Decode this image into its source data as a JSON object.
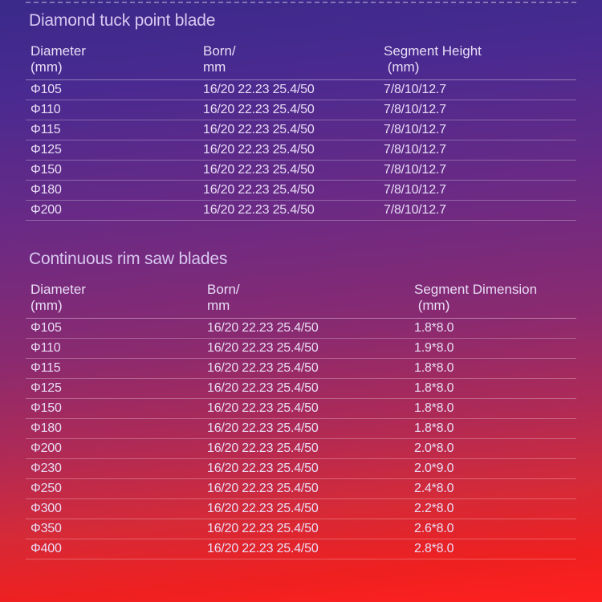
{
  "section1": {
    "title": "Diamond tuck point blade",
    "headers": {
      "c1a": "Diameter",
      "c1b": "(mm)",
      "c2a": "Born/",
      "c2b": "mm",
      "c3a": "Segment Height",
      "c3b": "(mm)"
    },
    "rows": [
      {
        "d": "Φ105",
        "b": "16/20 22.23 25.4/50",
        "s": "7/8/10/12.7"
      },
      {
        "d": "Φ110",
        "b": "16/20 22.23 25.4/50",
        "s": "7/8/10/12.7"
      },
      {
        "d": "Φ115",
        "b": "16/20 22.23 25.4/50",
        "s": "7/8/10/12.7"
      },
      {
        "d": "Φ125",
        "b": "16/20 22.23 25.4/50",
        "s": "7/8/10/12.7"
      },
      {
        "d": "Φ150",
        "b": "16/20 22.23 25.4/50",
        "s": "7/8/10/12.7"
      },
      {
        "d": "Φ180",
        "b": "16/20 22.23 25.4/50",
        "s": "7/8/10/12.7"
      },
      {
        "d": "Φ200",
        "b": "16/20 22.23 25.4/50",
        "s": "7/8/10/12.7"
      }
    ]
  },
  "section2": {
    "title": "Continuous rim saw blades",
    "headers": {
      "c1a": "Diameter",
      "c1b": "(mm)",
      "c2a": "Born/",
      "c2b": "mm",
      "c3a": "Segment Dimension",
      "c3b": "(mm)"
    },
    "rows": [
      {
        "d": "Φ105",
        "b": "16/20 22.23 25.4/50",
        "s": "1.8*8.0"
      },
      {
        "d": "Φ110",
        "b": "16/20 22.23 25.4/50",
        "s": "1.9*8.0"
      },
      {
        "d": "Φ115",
        "b": "16/20 22.23 25.4/50",
        "s": "1.8*8.0"
      },
      {
        "d": "Φ125",
        "b": "16/20 22.23 25.4/50",
        "s": "1.8*8.0"
      },
      {
        "d": "Φ150",
        "b": "16/20 22.23 25.4/50",
        "s": "1.8*8.0"
      },
      {
        "d": "Φ180",
        "b": "16/20 22.23 25.4/50",
        "s": "1.8*8.0"
      },
      {
        "d": "Φ200",
        "b": "16/20 22.23 25.4/50",
        "s": "2.0*8.0"
      },
      {
        "d": "Φ230",
        "b": "16/20 22.23 25.4/50",
        "s": "2.0*9.0"
      },
      {
        "d": "Φ250",
        "b": "16/20 22.23 25.4/50",
        "s": "2.4*8.0"
      },
      {
        "d": "Φ300",
        "b": "16/20 22.23 25.4/50",
        "s": "2.2*8.0"
      },
      {
        "d": "Φ350",
        "b": "16/20 22.23 25.4/50",
        "s": "2.6*8.0"
      },
      {
        "d": "Φ400",
        "b": "16/20 22.23 25.4/50",
        "s": "2.8*8.0"
      }
    ]
  },
  "style": {
    "text_color": "#e8ddf5",
    "title_color": "#d8c8f0",
    "row_border": "rgba(255,255,255,0.28)",
    "dash_color": "rgba(255,255,255,0.35)",
    "title_fontsize": 21,
    "header_fontsize": 17,
    "cell_fontsize": 16,
    "bg_gradient": [
      "#3a2a8a",
      "#4a2a90",
      "#6a2a85",
      "#8a2a70",
      "#b02a55",
      "#d52a38",
      "#ee2020",
      "#ff2020"
    ]
  }
}
